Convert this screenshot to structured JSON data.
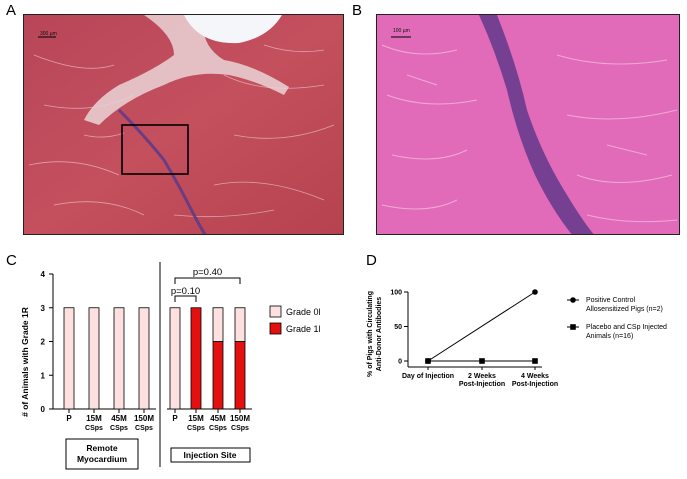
{
  "panels": {
    "a": {
      "letter": "A",
      "scale_label": "300 µm"
    },
    "b": {
      "letter": "B",
      "scale_label": "100 µm"
    },
    "c": {
      "letter": "C"
    },
    "d": {
      "letter": "D"
    }
  },
  "colors": {
    "grade0": "#fde0e0",
    "grade1": "#e41010",
    "tissue_a": "#c04a58",
    "tissue_b": "#e060b0"
  },
  "chart_data": [
    {
      "type": "bar",
      "panel": "C",
      "stacked": true,
      "ylabel": "# of Animals with Grade 1R",
      "ylim": [
        0,
        4
      ],
      "yticks": [
        "0",
        "1",
        "2",
        "3",
        "4"
      ],
      "categories": [
        {
          "line1": "P",
          "line2": ""
        },
        {
          "line1": "15M",
          "line2": "CSps"
        },
        {
          "line1": "45M",
          "line2": "CSps"
        },
        {
          "line1": "150M",
          "line2": "CSps"
        },
        {
          "line1": "P",
          "line2": ""
        },
        {
          "line1": "15M",
          "line2": "CSps"
        },
        {
          "line1": "45M",
          "line2": "CSps"
        },
        {
          "line1": "150M",
          "line2": "CSps"
        }
      ],
      "series": [
        {
          "name": "Grade 0R",
          "values": [
            3,
            3,
            3,
            3,
            3,
            0,
            1,
            1
          ]
        },
        {
          "name": "Grade 1R",
          "values": [
            0,
            0,
            0,
            0,
            0,
            3,
            2,
            2
          ]
        }
      ],
      "legend_position": "right",
      "annotations": [
        "p=0.10",
        "p=0.40"
      ],
      "group_labels": [
        {
          "line1": "Remote",
          "line2": "Myocardium"
        },
        {
          "line1": "Injection Site",
          "line2": ""
        }
      ]
    },
    {
      "type": "line",
      "panel": "D",
      "ylabel_lines": [
        "% of Pigs with Circulating",
        "Anti-Donor Antibodies"
      ],
      "ylim": [
        0,
        100
      ],
      "yticks": [
        "0",
        "50",
        "100"
      ],
      "x": [
        {
          "line1": "Day of Injection",
          "line2": ""
        },
        {
          "line1": "2 Weeks",
          "line2": "Post-Injection"
        },
        {
          "line1": "4 Weeks",
          "line2": "Post-Injection"
        }
      ],
      "series": [
        {
          "name_lines": [
            "Positive Control",
            "Allosensitized  Pigs  (n=2)"
          ],
          "marker": "circle",
          "values": [
            0,
            null,
            100
          ]
        },
        {
          "name_lines": [
            "Placebo and CSp Injected",
            "Animals (n=16)"
          ],
          "marker": "square",
          "values": [
            0,
            0,
            0
          ]
        }
      ],
      "legend_position": "right"
    }
  ]
}
